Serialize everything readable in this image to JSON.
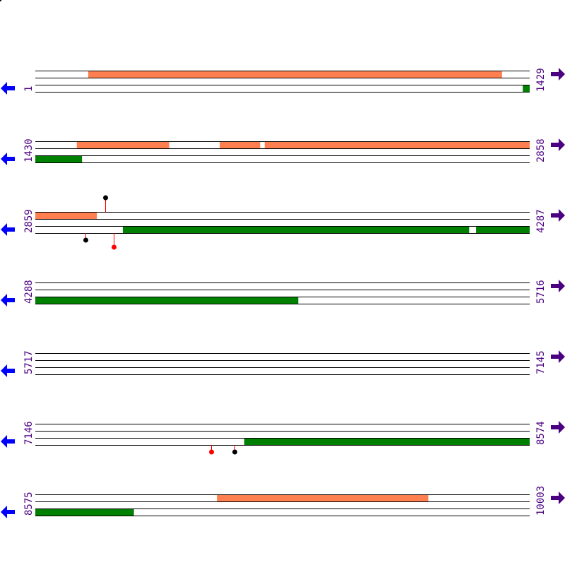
{
  "colors": {
    "forward_feature": "#ff7f50",
    "reverse_feature": "#008000",
    "line": "#000000",
    "left_arrow": "#0000ff",
    "right_arrow": "#4b0082",
    "label": "#4b0082",
    "stem": "#ff0000",
    "marker_black": "#000000",
    "marker_red": "#ff0000"
  },
  "icons": {
    "left": "arrow-left-icon",
    "right": "arrow-right-icon"
  },
  "rows": [
    {
      "start_label": "1",
      "end_label": "1429",
      "start": 1,
      "end": 1429,
      "top": [
        [
          154,
          1349
        ]
      ],
      "bottom": [
        [
          1410,
          1429
        ]
      ],
      "markers": []
    },
    {
      "start_label": "1430",
      "end_label": "2858",
      "start": 1430,
      "end": 2858,
      "top": [
        [
          1550,
          1816
        ],
        [
          1963,
          2079
        ],
        [
          2093,
          2858
        ]
      ],
      "bottom": [
        [
          1430,
          1564
        ]
      ],
      "markers": []
    },
    {
      "start_label": "2859",
      "end_label": "4287",
      "start": 2859,
      "end": 4287,
      "top": [
        [
          2859,
          3036
        ]
      ],
      "bottom": [
        [
          3112,
          4112
        ],
        [
          4133,
          4287
        ]
      ],
      "markers": [
        {
          "pos": 3061,
          "side": "top",
          "level": 2,
          "color": "black"
        },
        {
          "pos": 3004,
          "side": "bottom",
          "level": 1,
          "color": "black"
        },
        {
          "pos": 3085,
          "side": "bottom",
          "level": 2,
          "color": "red"
        }
      ]
    },
    {
      "start_label": "4288",
      "end_label": "5716",
      "start": 4288,
      "end": 5716,
      "top": [],
      "bottom": [
        [
          4288,
          5047
        ]
      ],
      "markers": []
    },
    {
      "start_label": "5717",
      "end_label": "7145",
      "start": 5717,
      "end": 7145,
      "top": [],
      "bottom": [],
      "markers": []
    },
    {
      "start_label": "7146",
      "end_label": "8574",
      "start": 7146,
      "end": 8574,
      "top": [],
      "bottom": [
        [
          7750,
          8574
        ]
      ],
      "markers": [
        {
          "pos": 7654,
          "side": "bottom",
          "level": 1,
          "color": "red"
        },
        {
          "pos": 7722,
          "side": "bottom",
          "level": 1,
          "color": "black"
        }
      ]
    },
    {
      "start_label": "8575",
      "end_label": "10003",
      "start": 8575,
      "end": 10003,
      "top": [
        [
          9100,
          9710
        ]
      ],
      "bottom": [
        [
          8575,
          8859
        ]
      ],
      "markers": []
    }
  ]
}
